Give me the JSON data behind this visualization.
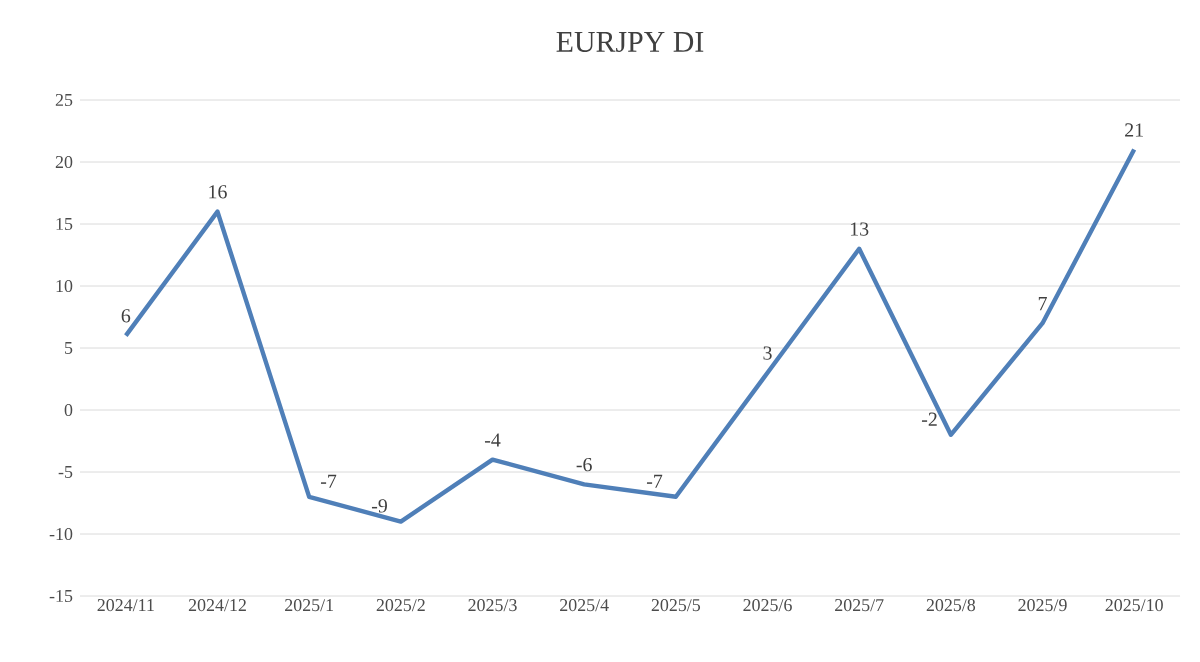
{
  "chart_data": {
    "type": "line",
    "title": "EURJPY DI",
    "categories": [
      "2024/11",
      "2024/12",
      "2025/1",
      "2025/2",
      "2025/3",
      "2025/4",
      "2025/5",
      "2025/6",
      "2025/7",
      "2025/8",
      "2025/9",
      "2025/10"
    ],
    "values": [
      6,
      16,
      -7,
      -9,
      -4,
      -6,
      -7,
      3,
      13,
      -2,
      7,
      21
    ],
    "color": "#4f7fb8",
    "ylim": [
      -15,
      25
    ],
    "yticks": [
      -15,
      -10,
      -5,
      0,
      5,
      10,
      15,
      20,
      25
    ],
    "grid": "y",
    "data_labels": true,
    "marker": "none",
    "line_style": "solid"
  }
}
